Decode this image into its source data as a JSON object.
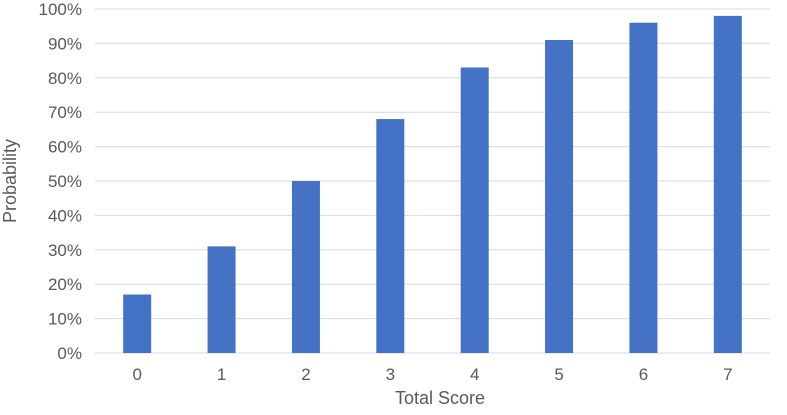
{
  "chart_data": {
    "type": "bar",
    "categories": [
      "0",
      "1",
      "2",
      "3",
      "4",
      "5",
      "6",
      "7"
    ],
    "values": [
      17,
      31,
      50,
      68,
      83,
      91,
      96,
      98
    ],
    "xlabel": "Total Score",
    "ylabel": "Probability",
    "ylim": [
      0,
      100
    ],
    "y_ticks": [
      "0%",
      "10%",
      "20%",
      "30%",
      "40%",
      "50%",
      "60%",
      "70%",
      "80%",
      "90%",
      "100%"
    ],
    "grid": true,
    "legend": "none",
    "colors": {
      "bar": "#4472C4",
      "grid": "#d9d9d9",
      "text": "#595959"
    }
  }
}
